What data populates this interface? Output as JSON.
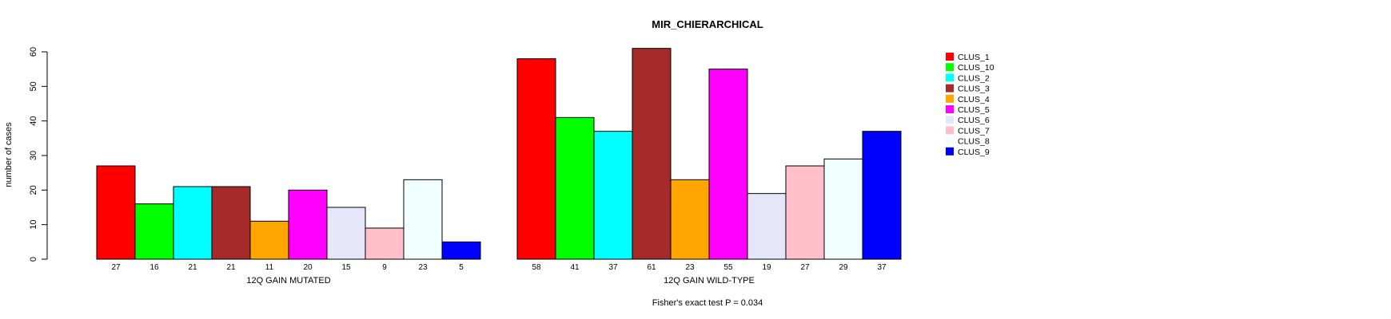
{
  "chart_data": {
    "type": "bar",
    "title": "MIR_CHIERARCHICAL",
    "ylabel": "number of cases",
    "ylim": [
      0,
      60
    ],
    "yticks": [
      0,
      10,
      20,
      30,
      40,
      50,
      60
    ],
    "grid": false,
    "legend_position": "right",
    "note": "Fisher's exact test P = 0.034",
    "clusters": [
      "CLUS_1",
      "CLUS_10",
      "CLUS_2",
      "CLUS_3",
      "CLUS_4",
      "CLUS_5",
      "CLUS_6",
      "CLUS_7",
      "CLUS_8",
      "CLUS_9"
    ],
    "colors": [
      "#ff0000",
      "#00ff00",
      "#00ffff",
      "#a52a2a",
      "#ffa500",
      "#ff00ff",
      "#e6e6fa",
      "#ffc0cb",
      "#f0ffff",
      "#0000ff"
    ],
    "groups": [
      {
        "name": "12Q GAIN MUTATED",
        "values": [
          27,
          16,
          21,
          21,
          11,
          20,
          15,
          9,
          23,
          5
        ]
      },
      {
        "name": "12Q GAIN WILD-TYPE",
        "values": [
          58,
          41,
          37,
          61,
          23,
          55,
          19,
          27,
          29,
          37
        ]
      }
    ]
  }
}
